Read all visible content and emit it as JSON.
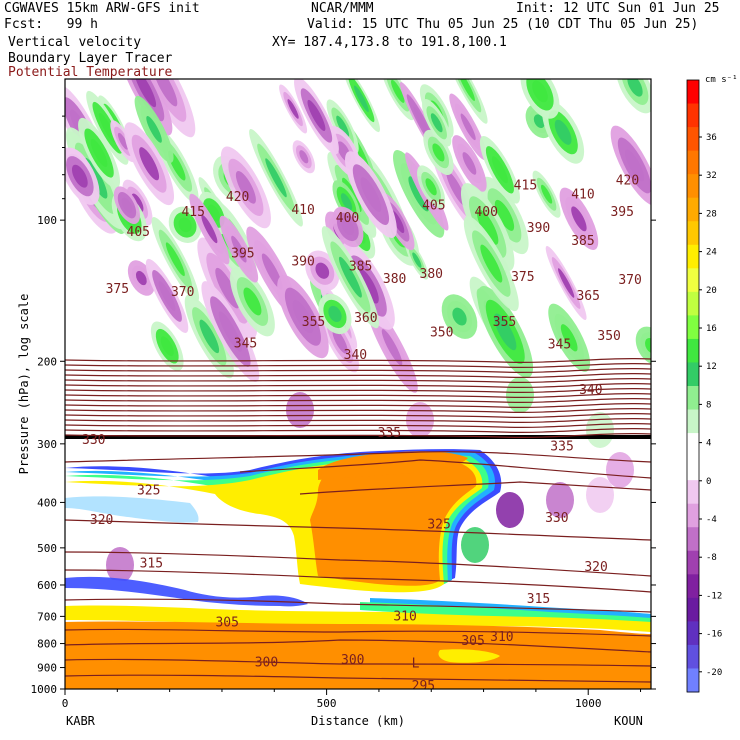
{
  "header": {
    "model_title": "CGWAVES 15km ARW-GFS init",
    "center": "NCAR/MMM",
    "init": "Init: 12 UTC Sun 01 Jun 25",
    "fcst": "Fcst:   99 h",
    "valid": "Valid: 15 UTC Thu 05 Jun 25 (10 CDT Thu 05 Jun 25)",
    "field1": "Vertical velocity",
    "field2": "Boundary Layer Tracer",
    "field3": "Potential Temperature",
    "xy": "XY= 187.4,173.8 to 191.8,100.1"
  },
  "colors": {
    "theta_contour": "#7a1f1f",
    "field3_text": "#8b1a1a"
  },
  "chart_data": {
    "type": "contour-cross-section",
    "xlabel": "Distance (km)",
    "ylabel": "Pressure (hPa), log scale",
    "x_ticks": [
      0,
      500,
      1000
    ],
    "xlim": [
      0,
      1120
    ],
    "y_ticks": [
      100,
      200,
      300,
      400,
      500,
      600,
      700,
      800,
      900,
      1000
    ],
    "ylim": [
      1000,
      50
    ],
    "y_scale": "log",
    "left_station": "KABR",
    "right_station": "KOUN",
    "colorbar": {
      "unit": "cm s⁻¹",
      "labels": [
        "36",
        "32",
        "28",
        "24",
        "20",
        "16",
        "12",
        "8",
        "4",
        "0",
        "-4",
        "-8",
        "-12",
        "-16",
        "-20"
      ],
      "colors": [
        "#ff0000",
        "#ff3300",
        "#ff5500",
        "#ff7700",
        "#ff8f00",
        "#ffaa00",
        "#ffc800",
        "#ffee00",
        "#f0ff40",
        "#c0ff40",
        "#80ff40",
        "#40e840",
        "#33cc66",
        "#90ee90",
        "#c8f5c8",
        "#ffffff",
        "#ffffff",
        "#f0c8f0",
        "#e0a0e0",
        "#c070c8",
        "#a040b0",
        "#8020a0",
        "#6a1aa0",
        "#6030c0",
        "#6050e0",
        "#7080ff"
      ]
    },
    "theta_labels": [
      {
        "text": "420",
        "x": 330,
        "p": 91
      },
      {
        "text": "420",
        "x": 1075,
        "p": 84
      },
      {
        "text": "415",
        "x": 245,
        "p": 98
      },
      {
        "text": "415",
        "x": 880,
        "p": 86
      },
      {
        "text": "410",
        "x": 455,
        "p": 97
      },
      {
        "text": "410",
        "x": 990,
        "p": 90
      },
      {
        "text": "405",
        "x": 140,
        "p": 108
      },
      {
        "text": "405",
        "x": 705,
        "p": 95
      },
      {
        "text": "400",
        "x": 540,
        "p": 101
      },
      {
        "text": "400",
        "x": 805,
        "p": 98
      },
      {
        "text": "395",
        "x": 340,
        "p": 120
      },
      {
        "text": "395",
        "x": 1065,
        "p": 98
      },
      {
        "text": "390",
        "x": 455,
        "p": 125
      },
      {
        "text": "390",
        "x": 905,
        "p": 106
      },
      {
        "text": "385",
        "x": 565,
        "p": 128
      },
      {
        "text": "385",
        "x": 990,
        "p": 113
      },
      {
        "text": "380",
        "x": 630,
        "p": 136
      },
      {
        "text": "380",
        "x": 700,
        "p": 133
      },
      {
        "text": "375",
        "x": 100,
        "p": 143
      },
      {
        "text": "375",
        "x": 875,
        "p": 135
      },
      {
        "text": "370",
        "x": 225,
        "p": 145
      },
      {
        "text": "370",
        "x": 1080,
        "p": 137
      },
      {
        "text": "365",
        "x": 1000,
        "p": 148
      },
      {
        "text": "360",
        "x": 575,
        "p": 165
      },
      {
        "text": "355",
        "x": 475,
        "p": 168
      },
      {
        "text": "355",
        "x": 840,
        "p": 168
      },
      {
        "text": "350",
        "x": 720,
        "p": 177
      },
      {
        "text": "350",
        "x": 1040,
        "p": 180
      },
      {
        "text": "345",
        "x": 345,
        "p": 187
      },
      {
        "text": "345",
        "x": 945,
        "p": 188
      },
      {
        "text": "340",
        "x": 555,
        "p": 198
      },
      {
        "text": "340",
        "x": 1005,
        "p": 235
      },
      {
        "text": "335",
        "x": 620,
        "p": 290
      },
      {
        "text": "335",
        "x": 950,
        "p": 310
      },
      {
        "text": "330",
        "x": 55,
        "p": 300
      },
      {
        "text": "330",
        "x": 940,
        "p": 440
      },
      {
        "text": "325",
        "x": 160,
        "p": 385
      },
      {
        "text": "325",
        "x": 715,
        "p": 455
      },
      {
        "text": "320",
        "x": 70,
        "p": 445
      },
      {
        "text": "320",
        "x": 1015,
        "p": 560
      },
      {
        "text": "315",
        "x": 165,
        "p": 550
      },
      {
        "text": "315",
        "x": 905,
        "p": 655
      },
      {
        "text": "310",
        "x": 650,
        "p": 715
      },
      {
        "text": "310",
        "x": 835,
        "p": 790
      },
      {
        "text": "305",
        "x": 310,
        "p": 735
      },
      {
        "text": "305",
        "x": 780,
        "p": 805
      },
      {
        "text": "300",
        "x": 385,
        "p": 895
      },
      {
        "text": "300",
        "x": 550,
        "p": 885
      },
      {
        "text": "295",
        "x": 685,
        "p": 1005
      },
      {
        "text": "L",
        "x": 670,
        "p": 900
      }
    ]
  }
}
